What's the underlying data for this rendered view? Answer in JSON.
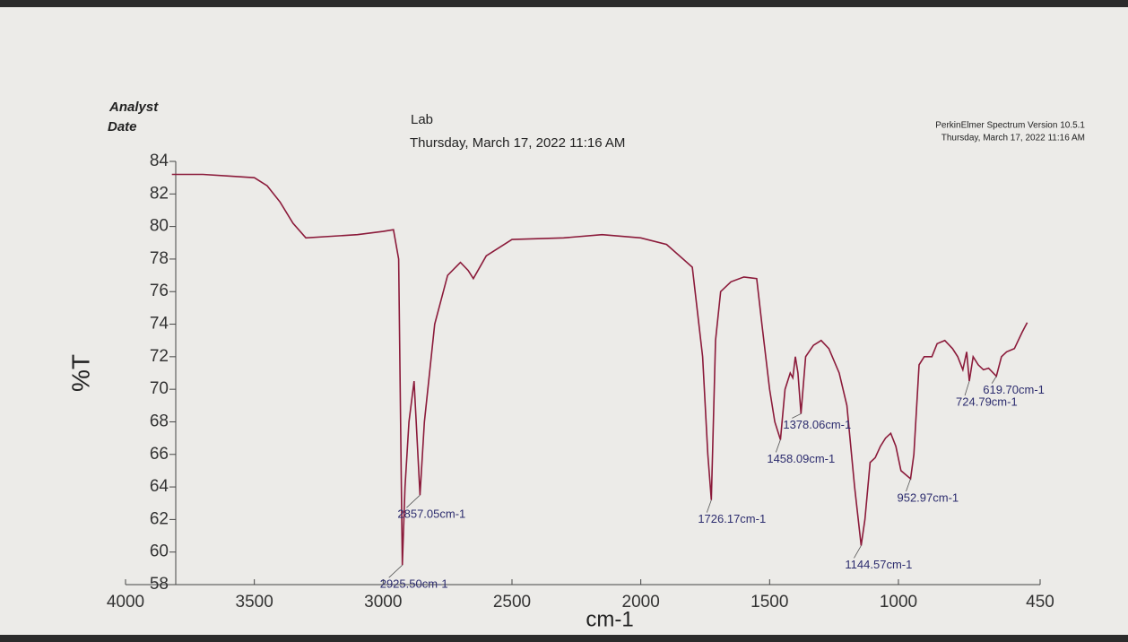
{
  "chart_data": {
    "type": "line",
    "header": {
      "analyst": "Analyst",
      "date": "Date",
      "lab": "Lab",
      "lab_date": "Thursday, March 17, 2022 11:16 AM",
      "software": "PerkinElmer Spectrum Version 10.5.1",
      "software_date": "Thursday, March 17, 2022 11:16 AM"
    },
    "x_label": "cm-1",
    "y_label": "%T",
    "xlim": [
      4000,
      450
    ],
    "ylim": [
      58,
      84
    ],
    "xticks": [
      4000,
      3500,
      3000,
      2500,
      2000,
      1500,
      1000,
      450
    ],
    "yticks": [
      58,
      60,
      62,
      64,
      66,
      68,
      70,
      72,
      74,
      76,
      78,
      80,
      82,
      84
    ],
    "x": [
      3820,
      3700,
      3600,
      3500,
      3450,
      3400,
      3350,
      3300,
      3200,
      3100,
      3000,
      2960,
      2940,
      2930,
      2925.5,
      2915,
      2900,
      2880,
      2857.05,
      2840,
      2800,
      2750,
      2700,
      2670,
      2650,
      2600,
      2500,
      2300,
      2150,
      2000,
      1900,
      1800,
      1760,
      1740,
      1726.17,
      1710,
      1690,
      1650,
      1600,
      1550,
      1530,
      1500,
      1480,
      1458.09,
      1440,
      1420,
      1410,
      1400,
      1390,
      1378.06,
      1360,
      1330,
      1300,
      1270,
      1230,
      1200,
      1170,
      1144.57,
      1130,
      1110,
      1090,
      1070,
      1050,
      1030,
      1010,
      990,
      952.97,
      940,
      920,
      900,
      870,
      850,
      820,
      790,
      770,
      750,
      735,
      724.79,
      710,
      690,
      670,
      650,
      619.7,
      600,
      580,
      550,
      520,
      500
    ],
    "series": [
      {
        "name": "%T",
        "color": "#8b1a3a",
        "values": [
          83.2,
          83.2,
          83.1,
          83.0,
          82.5,
          81.5,
          80.2,
          79.3,
          79.4,
          79.5,
          79.7,
          79.8,
          78,
          65,
          59.2,
          64,
          68,
          70.5,
          63.5,
          68,
          74,
          77,
          77.8,
          77.3,
          76.8,
          78.2,
          79.2,
          79.3,
          79.5,
          79.3,
          78.9,
          77.5,
          72,
          66,
          63.2,
          73,
          76,
          76.6,
          76.9,
          76.8,
          74,
          70,
          68,
          66.9,
          70,
          71,
          70.7,
          72,
          71,
          68.5,
          72,
          72.7,
          73,
          72.5,
          71,
          69,
          64,
          60.4,
          62,
          65.5,
          65.8,
          66.5,
          67,
          67.3,
          66.5,
          65,
          64.5,
          66,
          71.5,
          72,
          72,
          72.8,
          73,
          72.5,
          72,
          71.2,
          72.3,
          70.5,
          72,
          71.5,
          71.2,
          71.3,
          70.8,
          72,
          72.3,
          72.5,
          73.5,
          74.1
        ]
      }
    ],
    "annotations": [
      {
        "text": "2925.50cm-1",
        "x": 2925.5,
        "y": 59.2
      },
      {
        "text": "2857.05cm-1",
        "x": 2857.05,
        "y": 63.5
      },
      {
        "text": "1726.17cm-1",
        "x": 1726.17,
        "y": 63.2
      },
      {
        "text": "1458.09cm-1",
        "x": 1458.09,
        "y": 66.9
      },
      {
        "text": "1378.06cm-1",
        "x": 1378.06,
        "y": 68.5
      },
      {
        "text": "1144.57cm-1",
        "x": 1144.57,
        "y": 60.4
      },
      {
        "text": "952.97cm-1",
        "x": 952.97,
        "y": 64.5
      },
      {
        "text": "724.79cm-1",
        "x": 724.79,
        "y": 70.5
      },
      {
        "text": "619.70cm-1",
        "x": 619.7,
        "y": 70.8
      }
    ]
  }
}
